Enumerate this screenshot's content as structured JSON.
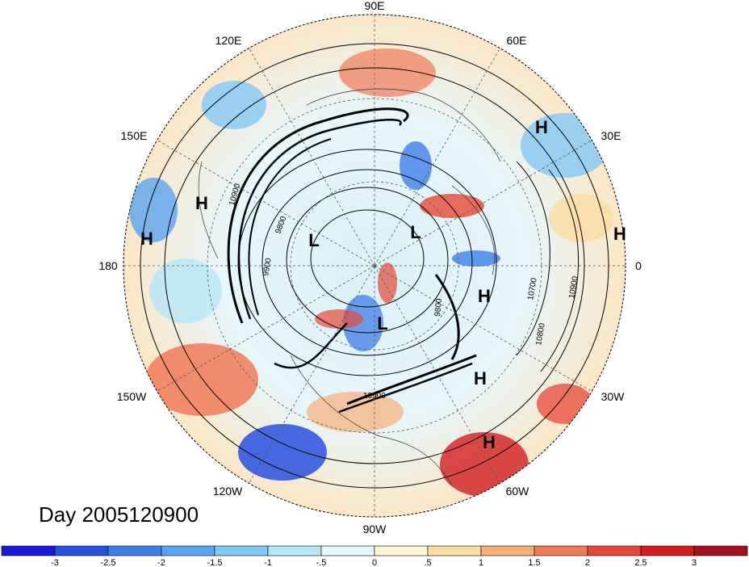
{
  "title": "Day 2005120900",
  "longitude_labels": [
    "90E",
    "60E",
    "30E",
    "0",
    "30W",
    "60W",
    "90W",
    "120W",
    "150W",
    "180",
    "150E",
    "120E"
  ],
  "pressure_systems": [
    "H",
    "H",
    "H",
    "H",
    "H",
    "H",
    "H",
    "L",
    "L",
    "L"
  ],
  "contour_labels": [
    "10900",
    "9800",
    "9900",
    "10700",
    "10900",
    "10800",
    "9800",
    "10900"
  ],
  "colorbar": {
    "ticks": [
      "-3",
      "-2.5",
      "-2",
      "-1.5",
      "-1",
      "-.5",
      "0",
      ".5",
      "1",
      "1.5",
      "2",
      "2.5",
      "3"
    ],
    "colors": [
      "#1a1ad6",
      "#2850e0",
      "#3f7fe8",
      "#5aa3f0",
      "#82c8f5",
      "#b6e6f8",
      "#e2f6fb",
      "#fdf6d6",
      "#fbdca2",
      "#f6ae78",
      "#f07a58",
      "#e64838",
      "#d21d22",
      "#a50f1e"
    ]
  }
}
